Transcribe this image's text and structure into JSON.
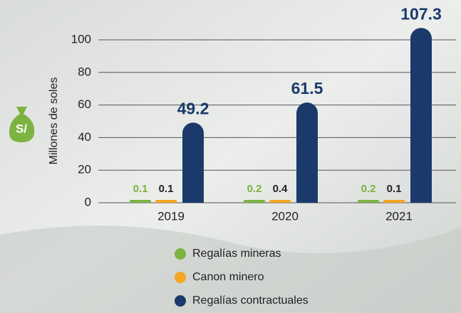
{
  "chart_data": {
    "type": "bar",
    "y_label": "Millones de soles",
    "categories": [
      "2019",
      "2020",
      "2021"
    ],
    "series": [
      {
        "name": "Regalías mineras",
        "color": "#7cb342",
        "values": [
          0.1,
          0.2,
          0.2
        ]
      },
      {
        "name": "Canon minero",
        "color": "#f5a623",
        "values": [
          0.1,
          0.4,
          0.1
        ]
      },
      {
        "name": "Regalías contractuales",
        "color": "#1b3a6b",
        "values": [
          49.2,
          61.5,
          107.3
        ]
      }
    ],
    "ylim": [
      0,
      100
    ],
    "yticks": [
      0,
      20,
      40,
      60,
      80,
      100
    ],
    "grid": true,
    "icon_label": "S/"
  }
}
